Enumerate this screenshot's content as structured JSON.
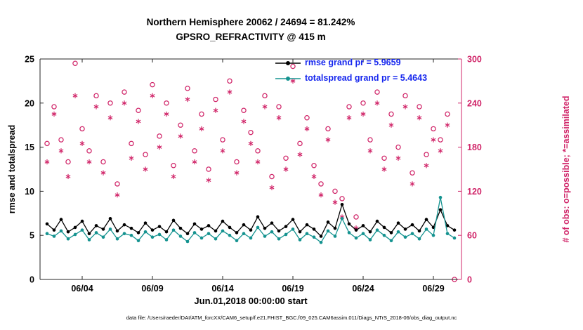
{
  "chart_data": {
    "type": "line+scatter",
    "title": "Northern Hemisphere 20062 / 24694 = 81.242%",
    "subtitle": "GPSRO_REFRACTIVITY @ 415 m",
    "xlabel": "Jun.01,2018 00:00:00 start",
    "ylabel_left": "rmse and totalspread",
    "ylabel_right": "# of obs: o=possible; *=assimilated",
    "caption": "data file: /Users/raeder/DAI/ATM_forcXX/CAM6_setup/f.e21.FHIST_BGC.f09_025.CAM6assim.011/Diags_NTrS_2018-06/obs_diag_output.nc",
    "rmse_grand": 5.9659,
    "totalspread_grand": 5.4643,
    "possible_count": 20062,
    "total_count": 24694,
    "assimilated_pct": 81.242,
    "x_range": [
      1,
      31
    ],
    "x_tick_values": [
      4,
      9,
      14,
      19,
      24,
      29
    ],
    "x_tick_labels": [
      "06/04",
      "06/09",
      "06/14",
      "06/19",
      "06/24",
      "06/29"
    ],
    "left_axis": {
      "min": 0,
      "max": 25,
      "ticks": [
        0,
        5,
        10,
        15,
        20,
        25
      ]
    },
    "right_axis": {
      "min": 0,
      "max": 300,
      "ticks": [
        0,
        60,
        120,
        180,
        240,
        300
      ]
    },
    "grid": false,
    "legend": [
      {
        "label": "rmse grand pr = 5.9659",
        "series": "rmse"
      },
      {
        "label": "totalspread grand pr = 5.4643",
        "series": "totalspread"
      }
    ],
    "colors": {
      "rmse": "#000000",
      "totalspread": "#159390",
      "obs": "#d02468",
      "legend_text": "#1526ee",
      "axis": "#262626"
    },
    "series": {
      "x": [
        1.5,
        2,
        2.5,
        3,
        3.5,
        4,
        4.5,
        5,
        5.5,
        6,
        6.5,
        7,
        7.5,
        8,
        8.5,
        9,
        9.5,
        10,
        10.5,
        11,
        11.5,
        12,
        12.5,
        13,
        13.5,
        14,
        14.5,
        15,
        15.5,
        16,
        16.5,
        17,
        17.5,
        18,
        18.5,
        19,
        19.5,
        20,
        20.5,
        21,
        21.5,
        22,
        22.5,
        23,
        23.5,
        24,
        24.5,
        25,
        25.5,
        26,
        26.5,
        27,
        27.5,
        28,
        28.5,
        29,
        29.5,
        30,
        30.5
      ],
      "rmse": [
        6.3,
        5.6,
        6.8,
        5.4,
        5.9,
        6.6,
        5.2,
        6.1,
        5.7,
        6.9,
        5.5,
        6.2,
        5.8,
        5.3,
        6.4,
        5.6,
        6.0,
        5.4,
        6.7,
        5.8,
        5.2,
        6.3,
        5.7,
        6.1,
        5.5,
        6.6,
        5.9,
        5.3,
        6.2,
        5.6,
        7.1,
        5.8,
        6.4,
        5.5,
        6.0,
        6.8,
        5.4,
        6.2,
        5.7,
        4.9,
        6.5,
        5.8,
        8.5,
        6.3,
        5.6,
        6.1,
        5.4,
        6.6,
        5.9,
        5.3,
        6.4,
        5.7,
        6.2,
        5.5,
        6.8,
        5.9,
        7.9,
        6.1,
        5.6
      ],
      "totalspread": [
        5.2,
        4.9,
        5.5,
        4.6,
        5.1,
        5.6,
        4.5,
        5.3,
        4.8,
        5.7,
        4.6,
        5.2,
        5.0,
        4.4,
        5.4,
        4.8,
        5.1,
        4.5,
        5.6,
        4.9,
        4.3,
        5.3,
        4.7,
        5.2,
        4.6,
        5.5,
        5.0,
        4.4,
        5.2,
        4.7,
        5.9,
        4.9,
        5.4,
        4.6,
        5.1,
        5.7,
        4.5,
        5.2,
        4.8,
        4.2,
        5.5,
        4.9,
        6.9,
        5.3,
        4.7,
        5.2,
        4.5,
        5.6,
        5.0,
        4.4,
        5.4,
        4.8,
        5.2,
        4.6,
        5.7,
        5.0,
        9.3,
        5.2,
        4.7
      ],
      "possible": [
        185,
        235,
        190,
        160,
        294,
        205,
        175,
        250,
        160,
        240,
        130,
        255,
        185,
        230,
        170,
        265,
        195,
        240,
        155,
        210,
        260,
        175,
        225,
        150,
        245,
        190,
        270,
        160,
        230,
        200,
        175,
        250,
        140,
        235,
        165,
        290,
        185,
        220,
        155,
        130,
        205,
        120,
        110,
        235,
        85,
        240,
        190,
        255,
        165,
        225,
        180,
        250,
        145,
        235,
        170,
        205,
        190,
        225,
        0
      ],
      "assimilated": [
        160,
        225,
        175,
        140,
        250,
        185,
        160,
        235,
        145,
        220,
        115,
        240,
        165,
        215,
        150,
        250,
        180,
        225,
        140,
        195,
        245,
        160,
        205,
        135,
        230,
        175,
        255,
        145,
        215,
        185,
        160,
        235,
        125,
        220,
        150,
        270,
        170,
        205,
        140,
        115,
        190,
        105,
        85,
        220,
        70,
        225,
        175,
        240,
        150,
        210,
        165,
        235,
        130,
        220,
        155,
        190,
        175,
        210,
        null
      ]
    }
  }
}
